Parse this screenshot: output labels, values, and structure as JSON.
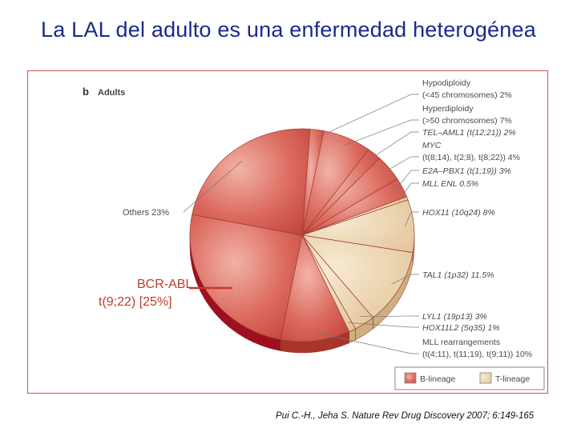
{
  "slide": {
    "title": "La LAL del adulto es una enfermedad heterogénea",
    "citation": "Pui C.-H., Jeha S. Nature Rev Drug Discovery 2007; 6:149-165"
  },
  "chart_data": {
    "type": "pie",
    "panel_letter": "b",
    "panel_title": "Adults",
    "slices": [
      {
        "name": "Hypodiploidy (<45 chromosomes)",
        "value": 2,
        "lineage": "B",
        "label_lines": [
          "Hypodiploidy",
          "(<45 chromosomes) 2%"
        ],
        "italic": false
      },
      {
        "name": "Hyperdiploidy (>50 chromosomes)",
        "value": 7,
        "lineage": "B",
        "label_lines": [
          "Hyperdiploidy",
          "(>50 chromosomes) 7%"
        ],
        "italic": false
      },
      {
        "name": "TEL–AML1 (t(12;21))",
        "value": 2,
        "lineage": "B",
        "label_lines": [
          "TEL–AML1 (t(12;21)) 2%"
        ],
        "italic": true
      },
      {
        "name": "MYC (t(8;14), t(2;8), t(8;22))",
        "value": 4,
        "lineage": "B",
        "label_lines": [
          "MYC",
          "(t(8;14), t(2;8), t(8;22)) 4%"
        ],
        "italic": true
      },
      {
        "name": "E2A–PBX1 (t(1;19))",
        "value": 3,
        "lineage": "B",
        "label_lines": [
          "E2A–PBX1 (t(1;19)) 3%"
        ],
        "italic": true
      },
      {
        "name": "MLL ENL",
        "value": 0.5,
        "lineage": "T",
        "label_lines": [
          "MLL ENL 0.5%"
        ],
        "italic": true
      },
      {
        "name": "HOX11 (10q24)",
        "value": 8,
        "lineage": "T",
        "label_lines": [
          "HOX11 (10q24) 8%"
        ],
        "italic": true
      },
      {
        "name": "TAL1 (1p32)",
        "value": 11.5,
        "lineage": "T",
        "label_lines": [
          "TAL1 (1p32) 11.5%"
        ],
        "italic": true
      },
      {
        "name": "LYL1 (19p13)",
        "value": 3,
        "lineage": "T",
        "label_lines": [
          "LYL1 (19p13) 3%"
        ],
        "italic": true
      },
      {
        "name": "HOX11L2 (5q35)",
        "value": 1,
        "lineage": "T",
        "label_lines": [
          "HOX11L2 (5q35) 1%"
        ],
        "italic": true
      },
      {
        "name": "MLL rearrangements (t(4;11), t(11;19), t(9;11))",
        "value": 10,
        "lineage": "B",
        "label_lines": [
          "MLL rearrangements",
          "(t(4;11), t(11;19), t(9;11)) 10%"
        ],
        "italic": false
      },
      {
        "name": "BCR-ABL t(9;22)",
        "value": 25,
        "lineage": "B-highlight",
        "label_lines": [
          "BCR-ABL",
          "t(9;22) [25%]"
        ],
        "italic": false
      },
      {
        "name": "Others",
        "value": 23,
        "lineage": "B",
        "label_lines": [
          "Others 23%"
        ],
        "italic": false
      }
    ],
    "legend": [
      {
        "label": "B-lineage",
        "color": "#d9534f"
      },
      {
        "label": "T-lineage",
        "color": "#ecd3ad"
      }
    ],
    "colors": {
      "b_lineage": "#d9534f",
      "b_highlight": "#c4162a",
      "t_lineage": "#ecd3ad",
      "annotation": "#c0392b"
    }
  }
}
